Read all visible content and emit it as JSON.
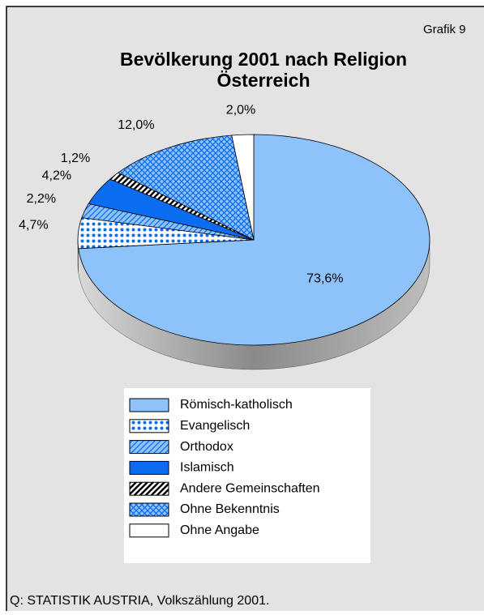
{
  "chart_data": {
    "type": "pie3d",
    "annotation": "Grafik 9",
    "title": "Bevölkerung 2001 nach Religion",
    "subtitle": "Österreich",
    "categories": [
      "Römisch-katholisch",
      "Evangelisch",
      "Orthodox",
      "Islamisch",
      "Andere Gemeinschaften",
      "Ohne Bekenntnis",
      "Ohne Angabe"
    ],
    "values": [
      73.6,
      4.7,
      2.2,
      4.2,
      1.2,
      12.0,
      2.0
    ],
    "value_labels": [
      "73,6%",
      "4,7%",
      "2,2%",
      "4,2%",
      "1,2%",
      "12,0%",
      "2,0%"
    ],
    "colors": [
      "#8ec2fb",
      "#ffffff",
      "#8ec2fb",
      "#0a6cf0",
      "#ffffff",
      "#8ec2fb",
      "#ffffff"
    ],
    "patterns": [
      "solid",
      "dots",
      "hatch",
      "solid",
      "hatch",
      "crosshatch",
      "solid"
    ],
    "pattern_colors": [
      null,
      "#0a6cf0",
      "#0a6cf0",
      null,
      "#000000",
      "#0a6cf0",
      null
    ],
    "legend": "bottom",
    "source": "Q: STATISTIK AUSTRIA, Volkszählung 2001."
  }
}
